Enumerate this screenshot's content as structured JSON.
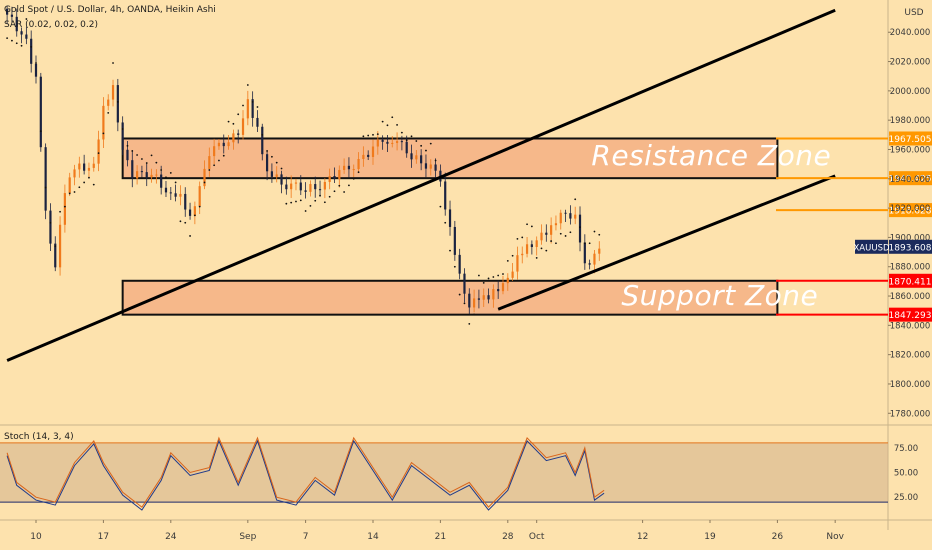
{
  "header": {
    "title": "Gold Spot / U.S. Dollar, 4h, OANDA, Heikin Ashi",
    "indicator": "SAR (0.02, 0.02, 0.2)",
    "currency": "USD"
  },
  "chart_data": {
    "type": "candlestick",
    "symbol": "XAUUSD",
    "last_price": 1893.608,
    "x_tick_labels": [
      "10",
      "17",
      "24",
      "Sep",
      "7",
      "14",
      "21",
      "28",
      "Oct",
      "12",
      "19",
      "26",
      "Nov"
    ],
    "y_ticks": [
      1780,
      1800,
      1820,
      1840,
      1860,
      1880,
      1900,
      1920,
      1940,
      1960,
      1980,
      2000,
      2020,
      2040
    ],
    "y_tick_labels": [
      "1780.000",
      "1800.000",
      "1820.000",
      "1840.000",
      "1860.000",
      "1880.000",
      "1900.000",
      "1920.000",
      "1940.000",
      "1960.000",
      "1980.000",
      "2000.000",
      "2020.000",
      "2040.000"
    ],
    "ylim": [
      1772,
      2062
    ],
    "price_series": [
      [
        "Aug 7",
        2050
      ],
      [
        "Aug 9",
        2035
      ],
      [
        "Aug 10",
        2005
      ],
      [
        "Aug 11",
        1920
      ],
      [
        "Aug 12",
        1880
      ],
      [
        "Aug 13",
        1935
      ],
      [
        "Aug 14",
        1945
      ],
      [
        "Aug 16",
        1950
      ],
      [
        "Aug 17",
        1985
      ],
      [
        "Aug 18",
        2005
      ],
      [
        "Aug 19",
        1960
      ],
      [
        "Aug 20",
        1945
      ],
      [
        "Aug 22",
        1942
      ],
      [
        "Aug 24",
        1930
      ],
      [
        "Aug 25",
        1925
      ],
      [
        "Aug 26",
        1915
      ],
      [
        "Aug 27",
        1935
      ],
      [
        "Aug 28",
        1960
      ],
      [
        "Aug 30",
        1965
      ],
      [
        "Aug 31",
        1970
      ],
      [
        "Sep 1",
        1990
      ],
      [
        "Sep 2",
        1975
      ],
      [
        "Sep 3",
        1945
      ],
      [
        "Sep 5",
        1937
      ],
      [
        "Sep 7",
        1932
      ],
      [
        "Sep 9",
        1938
      ],
      [
        "Sep 11",
        1945
      ],
      [
        "Sep 13",
        1955
      ],
      [
        "Sep 15",
        1965
      ],
      [
        "Sep 16",
        1968
      ],
      [
        "Sep 18",
        1955
      ],
      [
        "Sep 20",
        1950
      ],
      [
        "Sep 21",
        1935
      ],
      [
        "Sep 22",
        1905
      ],
      [
        "Sep 23",
        1875
      ],
      [
        "Sep 24",
        1855
      ],
      [
        "Sep 25",
        1860
      ],
      [
        "Sep 26",
        1858
      ],
      [
        "Sep 28",
        1870
      ],
      [
        "Sep 29",
        1885
      ],
      [
        "Sep 30",
        1895
      ],
      [
        "Oct 1",
        1900
      ],
      [
        "Oct 2",
        1905
      ],
      [
        "Oct 3",
        1910
      ],
      [
        "Oct 4",
        1915
      ],
      [
        "Oct 5",
        1912
      ],
      [
        "Oct 6",
        1882
      ],
      [
        "Oct 7",
        1890
      ],
      [
        "Oct 8",
        1893.608
      ]
    ],
    "levels": [
      {
        "label": "1967.505",
        "value": 1967.505,
        "color": "#ff9800"
      },
      {
        "label": "1940.425",
        "value": 1940.425,
        "color": "#ff9800"
      },
      {
        "label": "1918.628",
        "value": 1918.628,
        "color": "#ff9800"
      },
      {
        "label": "1870.411",
        "value": 1870.411,
        "color": "#ff0000"
      },
      {
        "label": "1847.293",
        "value": 1847.293,
        "color": "#ff0000"
      }
    ],
    "zones": [
      {
        "label": "Resistance Zone",
        "start": "Aug 19",
        "end": "Oct 26",
        "low": 1940.425,
        "high": 1967.505
      },
      {
        "label": "Support Zone",
        "start": "Aug 19",
        "end": "Oct 26",
        "low": 1847.293,
        "high": 1870.411
      }
    ],
    "trendlines": [
      {
        "from": [
          "Aug 7",
          1816
        ],
        "to": [
          "Nov 1",
          2055
        ]
      },
      {
        "from": [
          "Sep 27",
          1851
        ],
        "to": [
          "Nov 1",
          1942
        ]
      }
    ],
    "stoch": {
      "label": "Stoch (14, 3, 4)",
      "y_tick_labels": [
        "75.00",
        "50.00",
        "25.00"
      ],
      "y_ticks": [
        75,
        50,
        25
      ],
      "bands": [
        80,
        20
      ],
      "k": [
        [
          "Aug 7",
          70
        ],
        [
          "Aug 8",
          40
        ],
        [
          "Aug 10",
          25
        ],
        [
          "Aug 12",
          20
        ],
        [
          "Aug 14",
          60
        ],
        [
          "Aug 16",
          82
        ],
        [
          "Aug 17",
          60
        ],
        [
          "Aug 19",
          30
        ],
        [
          "Aug 21",
          15
        ],
        [
          "Aug 23",
          45
        ],
        [
          "Aug 24",
          70
        ],
        [
          "Aug 26",
          50
        ],
        [
          "Aug 28",
          55
        ],
        [
          "Aug 29",
          85
        ],
        [
          "Aug 31",
          40
        ],
        [
          "Sep 2",
          85
        ],
        [
          "Sep 4",
          25
        ],
        [
          "Sep 6",
          20
        ],
        [
          "Sep 8",
          45
        ],
        [
          "Sep 10",
          30
        ],
        [
          "Sep 12",
          85
        ],
        [
          "Sep 14",
          55
        ],
        [
          "Sep 16",
          25
        ],
        [
          "Sep 18",
          60
        ],
        [
          "Sep 20",
          45
        ],
        [
          "Sep 22",
          30
        ],
        [
          "Sep 24",
          40
        ],
        [
          "Sep 26",
          15
        ],
        [
          "Sep 28",
          35
        ],
        [
          "Sep 30",
          85
        ],
        [
          "Oct 2",
          65
        ],
        [
          "Oct 4",
          70
        ],
        [
          "Oct 5",
          50
        ],
        [
          "Oct 6",
          75
        ],
        [
          "Oct 7",
          25
        ],
        [
          "Oct 8",
          32
        ]
      ]
    }
  }
}
